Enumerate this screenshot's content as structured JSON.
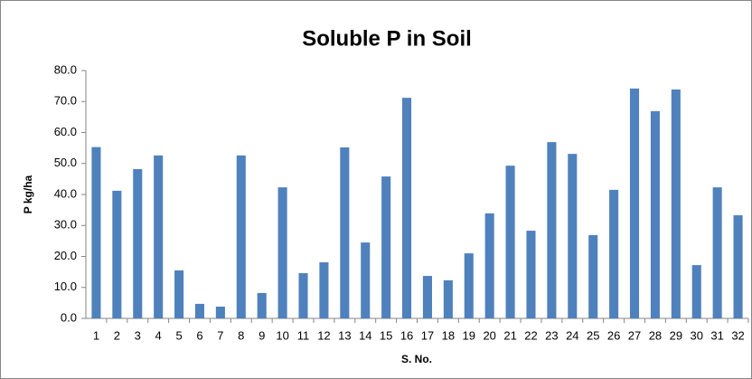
{
  "chart_data": {
    "type": "bar",
    "title": "Soluble P in Soil",
    "xlabel": "S. No.",
    "ylabel": "P kg/ha",
    "categories": [
      "1",
      "2",
      "3",
      "4",
      "5",
      "6",
      "7",
      "8",
      "9",
      "10",
      "11",
      "12",
      "13",
      "14",
      "15",
      "16",
      "17",
      "18",
      "19",
      "20",
      "21",
      "22",
      "23",
      "24",
      "25",
      "26",
      "27",
      "28",
      "29",
      "30",
      "31",
      "32"
    ],
    "values": [
      55.3,
      41.2,
      48.2,
      52.6,
      15.5,
      4.7,
      3.8,
      52.6,
      8.2,
      42.3,
      14.6,
      18.1,
      55.2,
      24.5,
      45.8,
      71.2,
      13.7,
      12.3,
      21.0,
      33.9,
      49.3,
      28.3,
      56.9,
      53.1,
      26.9,
      41.5,
      74.2,
      66.9,
      73.9,
      17.2,
      42.3,
      33.3
    ],
    "color": "#4f81bd",
    "ylim": [
      0,
      80
    ],
    "yticks": [
      {
        "value": 0,
        "label": "0.0"
      },
      {
        "value": 10,
        "label": "10.0"
      },
      {
        "value": 20,
        "label": "20.0"
      },
      {
        "value": 30,
        "label": "30.0"
      },
      {
        "value": 40,
        "label": "40.0"
      },
      {
        "value": 50,
        "label": "50.0"
      },
      {
        "value": 60,
        "label": "60.0"
      },
      {
        "value": 70,
        "label": "70.0"
      },
      {
        "value": 80,
        "label": "80.0"
      }
    ],
    "grid": false
  }
}
